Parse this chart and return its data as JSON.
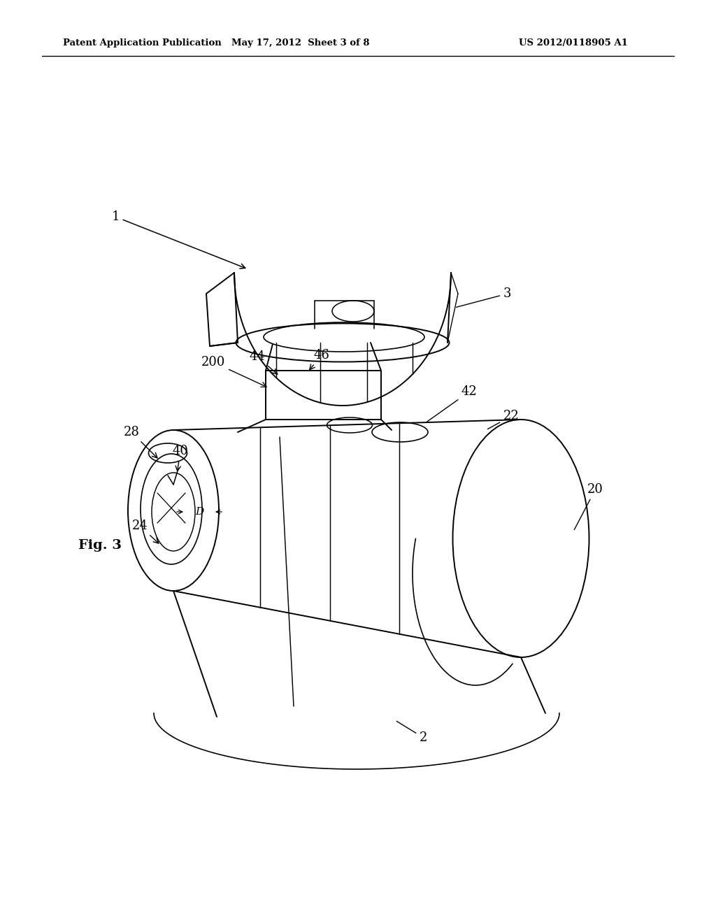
{
  "header_left": "Patent Application Publication",
  "header_mid": "May 17, 2012  Sheet 3 of 8",
  "header_right": "US 2012/0118905 A1",
  "fig_label": "Fig. 3",
  "background_color": "#ffffff",
  "line_color": "#000000"
}
